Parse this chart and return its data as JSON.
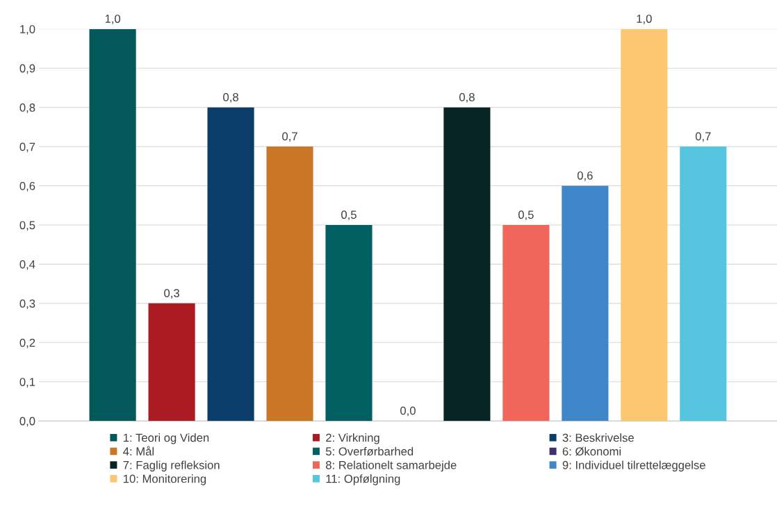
{
  "chart_data": {
    "type": "bar",
    "categories": [
      null
    ],
    "series": [
      {
        "name": "1: Teori og Viden",
        "color": "#02585a",
        "values": [
          1.0
        ],
        "value_labels": [
          "1,0"
        ]
      },
      {
        "name": "2: Virkning",
        "color": "#ab1c22",
        "values": [
          0.3
        ],
        "value_labels": [
          "0,3"
        ]
      },
      {
        "name": "3: Beskrivelse",
        "color": "#0b3d6b",
        "values": [
          0.8
        ],
        "value_labels": [
          "0,8"
        ]
      },
      {
        "name": "4: Mål",
        "color": "#c97726",
        "values": [
          0.7
        ],
        "value_labels": [
          "0,7"
        ]
      },
      {
        "name": "5: Overførbarhed",
        "color": "#025f62",
        "values": [
          0.5
        ],
        "value_labels": [
          "0,5"
        ]
      },
      {
        "name": "6: Økonomi",
        "color": "#3f2e72",
        "values": [
          0.0
        ],
        "value_labels": [
          "0,0"
        ]
      },
      {
        "name": "7: Faglig refleksion",
        "color": "#062424",
        "values": [
          0.8
        ],
        "value_labels": [
          "0,8"
        ]
      },
      {
        "name": "8: Relationelt samarbejde",
        "color": "#f0665a",
        "values": [
          0.5
        ],
        "value_labels": [
          "0,5"
        ]
      },
      {
        "name": "9: Individuel tilrettelæggelse",
        "color": "#3f87c8",
        "values": [
          0.6
        ],
        "value_labels": [
          "0,6"
        ]
      },
      {
        "name": "10: Monitorering",
        "color": "#fdc772",
        "values": [
          1.0
        ],
        "value_labels": [
          "1,0"
        ]
      },
      {
        "name": "11: Opfølgning",
        "color": "#57c5e0",
        "values": [
          0.7
        ],
        "value_labels": [
          "0,7"
        ]
      }
    ],
    "ylim": [
      0,
      1
    ],
    "yticks": [
      {
        "value": 0,
        "label": "0,0"
      },
      {
        "value": 0.1,
        "label": "0,1"
      },
      {
        "value": 0.2,
        "label": "0,2"
      },
      {
        "value": 0.3,
        "label": "0,3"
      },
      {
        "value": 0.4,
        "label": "0,4"
      },
      {
        "value": 0.5,
        "label": "0,5"
      },
      {
        "value": 0.6,
        "label": "0,6"
      },
      {
        "value": 0.7,
        "label": "0,7"
      },
      {
        "value": 0.8,
        "label": "0,8"
      },
      {
        "value": 0.9,
        "label": "0,9"
      },
      {
        "value": 1,
        "label": "1,0"
      }
    ],
    "grid": "y",
    "legend": "bottom"
  }
}
